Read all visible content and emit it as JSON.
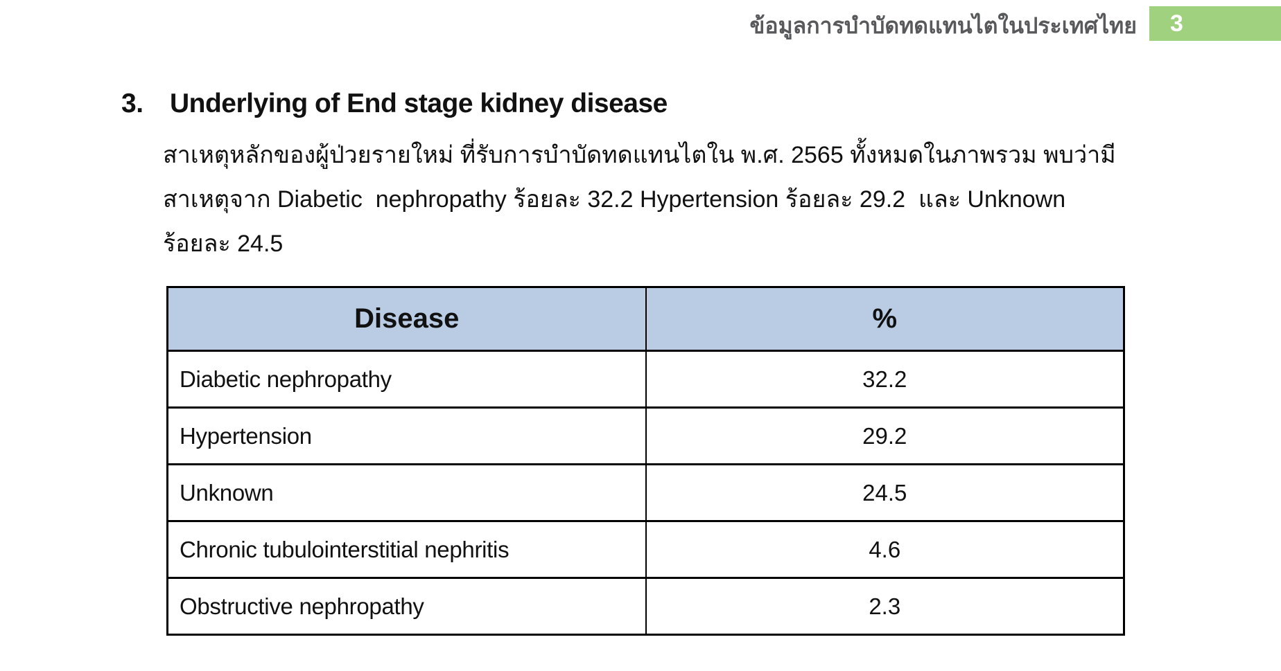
{
  "header": {
    "title_th": "ข้อมูลการบำบัดทดแทนไตในประเทศไทย",
    "page_number": "3",
    "badge_color": "#a0d17e",
    "title_color": "#58595b"
  },
  "section": {
    "number": "3.",
    "heading": "Underlying of End stage kidney disease",
    "paragraph_lines": [
      "สาเหตุหลักของผู้ป่วยรายใหม่ ที่รับการบำบัดทดแทนไตใน พ.ศ. 2565 ทั้งหมดในภาพรวม พบว่ามี",
      "สาเหตุจาก Diabetic  nephropathy ร้อยละ 32.2 Hypertension ร้อยละ 29.2  และ Unknown",
      "ร้อยละ 24.5"
    ]
  },
  "table": {
    "header_bg": "#b9cce4",
    "columns": {
      "disease": "Disease",
      "percent": "%"
    },
    "rows": [
      {
        "disease": "Diabetic nephropathy",
        "percent": "32.2"
      },
      {
        "disease": "Hypertension",
        "percent": "29.2"
      },
      {
        "disease": "Unknown",
        "percent": "24.5"
      },
      {
        "disease": "Chronic tubulointerstitial nephritis",
        "percent": "4.6"
      },
      {
        "disease": "Obstructive nephropathy",
        "percent": "2.3"
      }
    ]
  }
}
